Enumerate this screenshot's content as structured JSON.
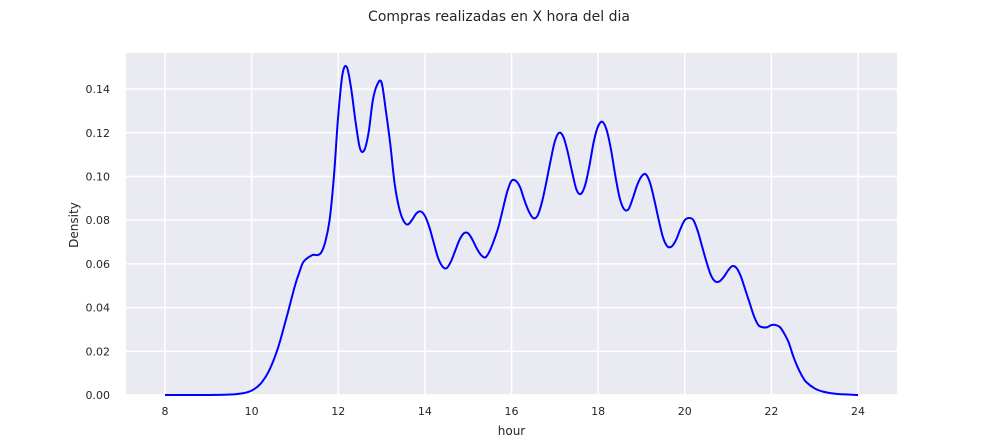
{
  "chart_data": {
    "type": "line",
    "title": "Compras realizadas en X hora del dia",
    "xlabel": "hour",
    "ylabel": "Density",
    "xlim": [
      7.1,
      24.9
    ],
    "ylim": [
      0,
      0.1565
    ],
    "grid": true,
    "x_ticks": [
      8,
      10,
      12,
      14,
      16,
      18,
      20,
      22,
      24
    ],
    "x_tick_labels": [
      "8",
      "10",
      "12",
      "14",
      "16",
      "18",
      "20",
      "22",
      "24"
    ],
    "y_ticks": [
      0,
      0.02,
      0.04,
      0.06,
      0.08,
      0.1,
      0.12,
      0.14
    ],
    "y_tick_labels": [
      "0.00",
      "0.02",
      "0.04",
      "0.06",
      "0.08",
      "0.10",
      "0.12",
      "0.14"
    ],
    "colors": {
      "line": "#0000ff",
      "plot_background": "#eaeaf2",
      "grid": "#ffffff"
    },
    "series": [
      {
        "x": [
          8,
          9,
          9.5,
          9.8,
          10,
          10.2,
          10.4,
          10.6,
          10.8,
          11,
          11.1,
          11.2,
          11.4,
          11.5,
          11.6,
          11.7,
          11.8,
          11.9,
          12,
          12.1,
          12.2,
          12.3,
          12.4,
          12.5,
          12.6,
          12.7,
          12.8,
          12.9,
          13,
          13.1,
          13.2,
          13.3,
          13.4,
          13.5,
          13.6,
          13.7,
          13.8,
          13.9,
          14,
          14.1,
          14.2,
          14.3,
          14.4,
          14.5,
          14.6,
          14.7,
          14.8,
          14.9,
          15,
          15.1,
          15.2,
          15.3,
          15.4,
          15.5,
          15.6,
          15.7,
          15.8,
          15.9,
          16,
          16.1,
          16.2,
          16.3,
          16.4,
          16.5,
          16.6,
          16.7,
          16.8,
          16.9,
          17,
          17.1,
          17.2,
          17.3,
          17.4,
          17.5,
          17.6,
          17.7,
          17.8,
          17.9,
          18,
          18.1,
          18.2,
          18.3,
          18.4,
          18.5,
          18.6,
          18.7,
          18.8,
          18.9,
          19,
          19.1,
          19.2,
          19.3,
          19.4,
          19.5,
          19.6,
          19.7,
          19.8,
          19.9,
          20,
          20.1,
          20.2,
          20.3,
          20.4,
          20.5,
          20.6,
          20.7,
          20.8,
          20.9,
          21,
          21.1,
          21.2,
          21.3,
          21.4,
          21.5,
          21.6,
          21.7,
          21.8,
          21.9,
          22,
          22.1,
          22.2,
          22.3,
          22.4,
          22.5,
          22.6,
          22.7,
          22.8,
          23,
          23.2,
          23.5,
          24
        ],
        "y": [
          0,
          0,
          0.0002,
          0.0008,
          0.002,
          0.005,
          0.011,
          0.021,
          0.035,
          0.05,
          0.056,
          0.061,
          0.064,
          0.064,
          0.065,
          0.07,
          0.08,
          0.1,
          0.128,
          0.147,
          0.15,
          0.14,
          0.125,
          0.113,
          0.112,
          0.12,
          0.135,
          0.142,
          0.143,
          0.13,
          0.115,
          0.097,
          0.086,
          0.08,
          0.078,
          0.08,
          0.083,
          0.084,
          0.082,
          0.077,
          0.07,
          0.063,
          0.059,
          0.058,
          0.061,
          0.066,
          0.071,
          0.074,
          0.074,
          0.071,
          0.067,
          0.064,
          0.063,
          0.066,
          0.071,
          0.077,
          0.085,
          0.093,
          0.098,
          0.098,
          0.095,
          0.089,
          0.084,
          0.081,
          0.082,
          0.088,
          0.097,
          0.107,
          0.116,
          0.12,
          0.118,
          0.111,
          0.102,
          0.094,
          0.092,
          0.096,
          0.105,
          0.116,
          0.123,
          0.125,
          0.121,
          0.112,
          0.1,
          0.09,
          0.085,
          0.085,
          0.09,
          0.096,
          0.1,
          0.101,
          0.097,
          0.089,
          0.08,
          0.072,
          0.068,
          0.068,
          0.071,
          0.076,
          0.08,
          0.081,
          0.08,
          0.075,
          0.068,
          0.061,
          0.055,
          0.052,
          0.052,
          0.054,
          0.057,
          0.059,
          0.058,
          0.054,
          0.048,
          0.042,
          0.036,
          0.032,
          0.031,
          0.031,
          0.032,
          0.032,
          0.031,
          0.028,
          0.024,
          0.018,
          0.013,
          0.009,
          0.006,
          0.003,
          0.0015,
          0.0005,
          0
        ]
      }
    ]
  }
}
